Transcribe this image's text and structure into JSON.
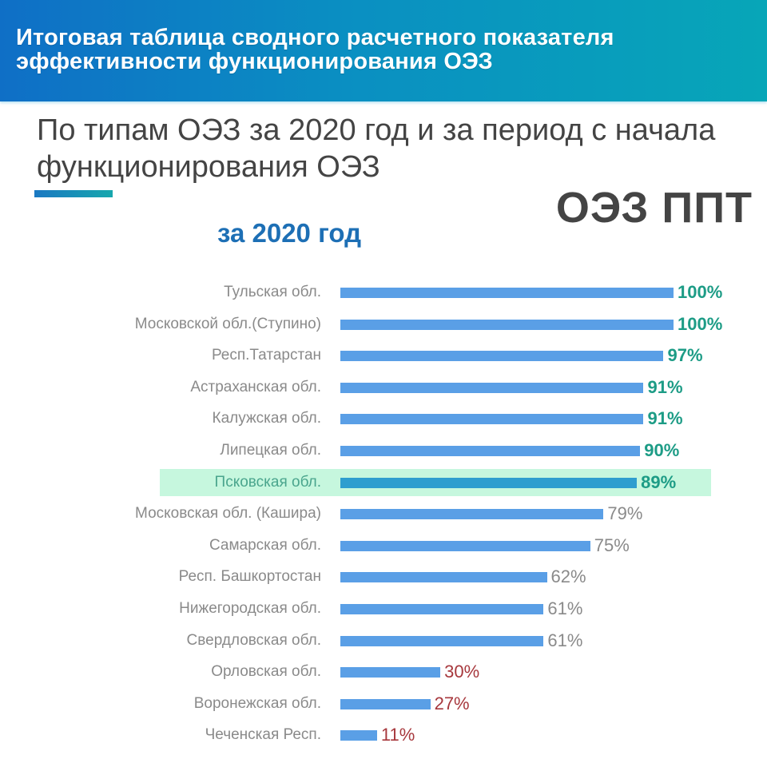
{
  "header": {
    "title": "Итоговая таблица сводного расчетного показателя эффективности функционирования ОЭЗ"
  },
  "subtitle": "По типам ОЭЗ за 2020 год и за период с начала функционирования ОЭЗ",
  "zone_type": "ОЭЗ ППТ",
  "period_label": "за 2020 год",
  "colors": {
    "header_gradient_start": "#0f6fc6",
    "header_gradient_end": "#07a6b8",
    "bar": "#5a9fe6",
    "bar_highlight": "#2e9ecf",
    "highlight_background": "#c6f7de",
    "value_high": "#1d9c86",
    "value_mid": "#8a8a8a",
    "value_low": "#a7383d",
    "period_label": "#1d6fb5"
  },
  "chart_data": {
    "type": "bar",
    "orientation": "horizontal",
    "title": "ОЭЗ ППТ — за 2020 год",
    "xlabel": "",
    "ylabel": "",
    "xlim": [
      0,
      100
    ],
    "grid": false,
    "legend": null,
    "highlighted_category": "Псковская обл.",
    "categories": [
      "Тульская обл.",
      "Московской обл.(Ступино)",
      "Респ.Татарстан",
      "Астраханская обл.",
      "Калужская обл.",
      "Липецкая обл.",
      "Псковская обл.",
      "Московская обл. (Кашира)",
      "Самарская обл.",
      "Респ. Башкортостан",
      "Нижегородская обл.",
      "Свердловская обл.",
      "Орловская обл.",
      "Воронежская обл.",
      "Чеченская Респ."
    ],
    "values": [
      100,
      100,
      97,
      91,
      91,
      90,
      89,
      79,
      75,
      62,
      61,
      61,
      30,
      27,
      11
    ],
    "value_labels": [
      "100%",
      "100%",
      "97%",
      "91%",
      "91%",
      "90%",
      "89%",
      "79%",
      "75%",
      "62%",
      "61%",
      "61%",
      "30%",
      "27%",
      "11%"
    ],
    "value_tiers": [
      "high",
      "high",
      "high",
      "high",
      "high",
      "high",
      "high",
      "mid",
      "mid",
      "mid",
      "mid",
      "mid",
      "low",
      "low",
      "low"
    ]
  }
}
